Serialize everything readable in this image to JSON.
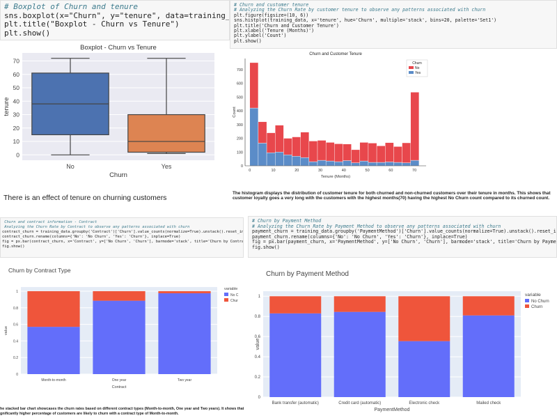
{
  "cell1": {
    "lines": [
      {
        "text": "# Boxplot of Churn and tenure",
        "kind": "comment"
      },
      {
        "text": "sns.boxplot(x=\"Churn\", y=\"tenure\", data=training_data)",
        "kind": "code"
      },
      {
        "text": "plt.title(\"Boxplot - Churn vs Tenure\")",
        "kind": "code"
      },
      {
        "text": "plt.show()",
        "kind": "code"
      }
    ]
  },
  "cell2": {
    "lines": [
      {
        "text": "# Churn and customer tenure",
        "kind": "comment"
      },
      {
        "text": "# Analyzing the Churn Rate by customer tenure to observe any patterns associated with churn",
        "kind": "comment"
      },
      {
        "text": "plt.figure(figsize=(10, 6))",
        "kind": "code"
      },
      {
        "text": "sns.histplot(training_data, x='tenure', hue='Churn', multiple='stack', bins=20, palette='Set1')",
        "kind": "code"
      },
      {
        "text": "plt.title('Churn and Customer Tenure')",
        "kind": "code"
      },
      {
        "text": "plt.xlabel('Tenure (Months)')",
        "kind": "code"
      },
      {
        "text": "plt.ylabel('Count')",
        "kind": "code"
      },
      {
        "text": "plt.show()",
        "kind": "code"
      }
    ]
  },
  "cell3": {
    "lines": [
      {
        "text": " Churn and contract information - Contract",
        "kind": "comment"
      },
      {
        "text": " Analyzing the Churn Rate by Contract to observe any patterns associated with churn",
        "kind": "comment"
      },
      {
        "text": "contract_churn = training_data.groupby('Contract')['Churn'].value_counts(normalize=True).unstack().reset_index()",
        "kind": "code"
      },
      {
        "text": "contract_churn.rename(columns={'No': 'No Churn', 'Yes': 'Churn'}, inplace=True)",
        "kind": "code"
      },
      {
        "text": "",
        "kind": "code"
      },
      {
        "text": "fig = px.bar(contract_churn, x='Contract', y=['No Churn', 'Churn'], barmode='stack', title='Churn by Contract Type')",
        "kind": "code"
      },
      {
        "text": "fig.show()",
        "kind": "code"
      }
    ]
  },
  "cell4": {
    "lines": [
      {
        "text": "# Churn by Payment Method",
        "kind": "comment"
      },
      {
        "text": "# Analyzing the Churn Rate by Payment Method to observe any patterns associated with churn",
        "kind": "comment"
      },
      {
        "text": "payment_churn = training_data.groupby('PaymentMethod')['Churn'].value_counts(normalize=True).unstack().reset_index()",
        "kind": "code"
      },
      {
        "text": "payment_churn.rename(columns={'No': 'No Churn', 'Yes': 'Churn'}, inplace=True)",
        "kind": "code"
      },
      {
        "text": "",
        "kind": "code"
      },
      {
        "text": "fig = px.bar(payment_churn, x='PaymentMethod', y=['No Churn', 'Churn'], barmode='stack', title='Churn by Payment Method')",
        "kind": "code"
      },
      {
        "text": "fig.show()",
        "kind": "code"
      }
    ]
  },
  "markdown": {
    "boxplot_note": "There is an effect of tenure on churning customers",
    "histogram_note": "The histogram displays the distribution of customer tenure for both churned and non-churned customers over their tenure in months. This shows that customer loyalty goes a very long with the customers with the highest months(70) having the highest No Churn count compared to its churned count.",
    "contract_note_line1": "he stacked bar chart showcases the churn rates based on different contract types (Month-to-month, One year and Two years). It shows that a",
    "contract_note_line2": "gnificantly higher percentage of customers are likely to churn with a contract type of Month-to-month."
  },
  "chart_data": [
    {
      "type": "box",
      "title": "Boxplot - Churn vs Tenure",
      "xlabel": "Churn",
      "ylabel": "tenure",
      "categories": [
        "No",
        "Yes"
      ],
      "boxes": [
        {
          "min": 0,
          "q1": 15,
          "median": 38,
          "q3": 61,
          "max": 72,
          "color": "#4c72b0"
        },
        {
          "min": 1,
          "q1": 2,
          "median": 10,
          "q3": 30,
          "max": 72,
          "color": "#dd8452"
        }
      ],
      "yticks": [
        0,
        10,
        20,
        30,
        40,
        50,
        60,
        70
      ],
      "ylim": [
        -4,
        76
      ]
    },
    {
      "type": "bar",
      "stacked": true,
      "title": "Churn and Customer Tenure",
      "xlabel": "Tenure (Months)",
      "ylabel": "Count",
      "bin_edges": [
        0,
        3.6,
        7.2,
        10.8,
        14.4,
        18,
        21.6,
        25.2,
        28.8,
        32.4,
        36,
        39.6,
        43.2,
        46.8,
        50.4,
        54,
        57.6,
        61.2,
        64.8,
        68.4,
        72
      ],
      "series": [
        {
          "name": "Yes",
          "color": "#5b8cc8",
          "values": [
            420,
            165,
            95,
            100,
            80,
            70,
            60,
            30,
            40,
            35,
            30,
            38,
            22,
            35,
            25,
            25,
            28,
            25,
            22,
            40
          ]
        },
        {
          "name": "No",
          "color": "#e8474c",
          "values": [
            330,
            155,
            145,
            195,
            120,
            140,
            185,
            150,
            145,
            135,
            130,
            120,
            95,
            135,
            140,
            120,
            140,
            115,
            145,
            495
          ]
        }
      ],
      "legend_title": "Churn",
      "legend_order": [
        "No",
        "Yes"
      ],
      "legend_position": "top-right",
      "xticks": [
        0,
        10,
        20,
        30,
        40,
        50,
        60,
        70
      ],
      "yticks": [
        0,
        100,
        200,
        300,
        400,
        500,
        600,
        700
      ],
      "xlim": [
        -2,
        75
      ],
      "ylim": [
        0,
        780
      ]
    },
    {
      "type": "bar",
      "stacked": true,
      "title": "Churn by Contract Type",
      "xlabel": "Contract",
      "ylabel": "value",
      "categories": [
        "Month-to-month",
        "One year",
        "Two year"
      ],
      "series": [
        {
          "name": "No C",
          "color": "#636efa",
          "values": [
            0.57,
            0.885,
            0.975
          ]
        },
        {
          "name": "Chur",
          "color": "#ef553b",
          "values": [
            0.43,
            0.115,
            0.025
          ]
        }
      ],
      "legend_title": "variable",
      "legend_position": "right",
      "yticks": [
        0,
        0.2,
        0.4,
        0.6,
        0.8,
        1
      ],
      "ylim": [
        0,
        1.05
      ]
    },
    {
      "type": "bar",
      "stacked": true,
      "title": "Churn by Payment Method",
      "xlabel": "PaymentMethod",
      "ylabel": "value",
      "categories": [
        "Bank transfer (automatic)",
        "Credit card (automatic)",
        "Electronic check",
        "Mailed check"
      ],
      "series": [
        {
          "name": "No Churn",
          "color": "#636efa",
          "values": [
            0.83,
            0.845,
            0.555,
            0.81
          ]
        },
        {
          "name": "Churn",
          "color": "#ef553b",
          "values": [
            0.17,
            0.155,
            0.445,
            0.19
          ]
        }
      ],
      "legend_title": "variable",
      "legend_position": "right",
      "yticks": [
        0,
        0.2,
        0.4,
        0.6,
        0.8,
        1
      ],
      "ylim": [
        0,
        1.05
      ]
    }
  ]
}
